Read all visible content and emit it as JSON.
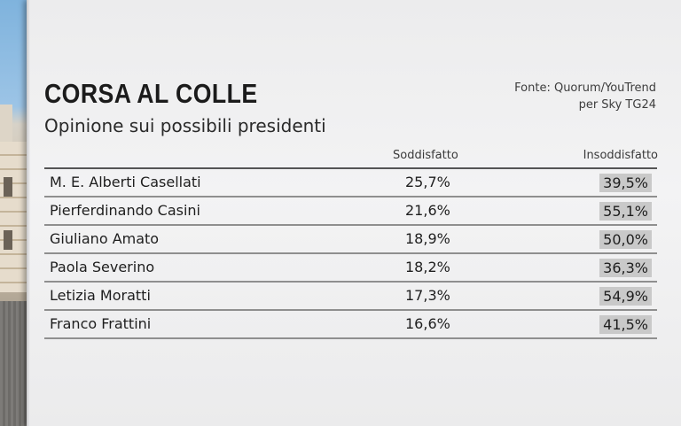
{
  "header": {
    "title": "CORSA AL COLLE",
    "subtitle": "Opinione sui possibili presidenti",
    "source_line1": "Fonte: Quorum/YouTrend",
    "source_line2": "per Sky TG24"
  },
  "chart_data": {
    "type": "table",
    "title": "CORSA AL COLLE",
    "subtitle": "Opinione sui possibili presidenti",
    "columns": [
      "Soddisfatto",
      "Insoddisfatto"
    ],
    "rows": [
      {
        "name": "M. E. Alberti Casellati",
        "soddisfatto": "25,7%",
        "insoddisfatto": "39,5%",
        "insoddisfatto_value": 39.5
      },
      {
        "name": "Pierferdinando Casini",
        "soddisfatto": "21,6%",
        "insoddisfatto": "55,1%",
        "insoddisfatto_value": 55.1
      },
      {
        "name": "Giuliano Amato",
        "soddisfatto": "18,9%",
        "insoddisfatto": "50,0%",
        "insoddisfatto_value": 50.0
      },
      {
        "name": "Paola Severino",
        "soddisfatto": "18,2%",
        "insoddisfatto": "36,3%",
        "insoddisfatto_value": 36.3
      },
      {
        "name": "Letizia Moratti",
        "soddisfatto": "17,3%",
        "insoddisfatto": "54,9%",
        "insoddisfatto_value": 54.9
      },
      {
        "name": "Franco Frattini",
        "soddisfatto": "16,6%",
        "insoddisfatto": "41,5%",
        "insoddisfatto_value": 41.5
      }
    ],
    "colors": {
      "insoddisfatto_bar": "#c9c9c9",
      "rule": "#8f8f8f"
    }
  }
}
